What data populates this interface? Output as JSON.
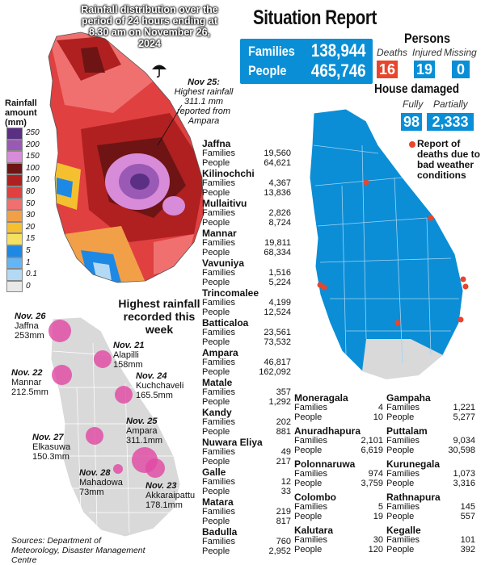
{
  "rainfall_map": {
    "title": "Rainfall distribution over the period of 24 hours ending at 8.30 am on November 26, 2024",
    "annotation": {
      "date": "Nov 25:",
      "text": "Highest rainfall 311.1 mm reported from Ampara"
    },
    "legend_title": "Rainfall amount (mm)",
    "legend": [
      {
        "label": "250",
        "color": "#5b2f84"
      },
      {
        "label": "200",
        "color": "#9b59b6"
      },
      {
        "label": "150",
        "color": "#d88bd8"
      },
      {
        "label": "100",
        "color": "#6e1414"
      },
      {
        "label": "100",
        "color": "#b02020"
      },
      {
        "label": "80",
        "color": "#e04040"
      },
      {
        "label": "50",
        "color": "#f07070"
      },
      {
        "label": "30",
        "color": "#f2a048"
      },
      {
        "label": "20",
        "color": "#f5c030"
      },
      {
        "label": "15",
        "color": "#f5e060"
      },
      {
        "label": "5",
        "color": "#1e88e5"
      },
      {
        "label": "1",
        "color": "#64b5f6"
      },
      {
        "label": "0.1",
        "color": "#b3d9f5"
      },
      {
        "label": "0",
        "color": "#e8e8e8"
      }
    ]
  },
  "situation_report": {
    "title": "Situation Report",
    "families_label": "Families",
    "families_value": "138,944",
    "people_label": "People",
    "people_value": "465,746",
    "persons_title": "Persons",
    "deaths_label": "Deaths",
    "deaths_value": "16",
    "injured_label": "Injured",
    "injured_value": "19",
    "missing_label": "Missing",
    "missing_value": "0",
    "house_title": "House damaged",
    "fully_label": "Fully",
    "fully_value": "98",
    "partially_label": "Partially",
    "partially_value": "2,333",
    "deaths_note": "Report of deaths due to bad weather conditions"
  },
  "districts_col1": [
    {
      "name": "Jaffna",
      "families": "19,560",
      "people": "64,621"
    },
    {
      "name": "Kilinochchi",
      "families": "4,367",
      "people": "13,836"
    },
    {
      "name": "Mullaitivu",
      "families": "2,826",
      "people": "8,724"
    },
    {
      "name": "Mannar",
      "families": "19,811",
      "people": "68,334"
    },
    {
      "name": "Vavuniya",
      "families": "1,516",
      "people": "5,224"
    },
    {
      "name": "Trincomalee",
      "families": "4,199",
      "people": "12,524"
    },
    {
      "name": "Batticaloa",
      "families": "23,561",
      "people": "73,532"
    },
    {
      "name": "Ampara",
      "families": "46,817",
      "people": "162,092"
    },
    {
      "name": "Matale",
      "families": "357",
      "people": "1,292"
    },
    {
      "name": "Kandy",
      "families": "202",
      "people": "881"
    },
    {
      "name": "Nuwara Eliya",
      "families": "49",
      "people": "217"
    },
    {
      "name": "Galle",
      "families": "12",
      "people": "33"
    },
    {
      "name": "Matara",
      "families": "219",
      "people": "817"
    },
    {
      "name": "Badulla",
      "families": "760",
      "people": "2,952"
    }
  ],
  "districts_col2": [
    {
      "name": "Moneragala",
      "families": "4",
      "people": "10"
    },
    {
      "name": "Anuradhapura",
      "families": "2,101",
      "people": "6,619"
    },
    {
      "name": "Polonnaruwa",
      "families": "974",
      "people": "3,759"
    },
    {
      "name": "Colombo",
      "families": "5",
      "people": "19"
    },
    {
      "name": "Kalutara",
      "families": "30",
      "people": "120"
    }
  ],
  "districts_col3": [
    {
      "name": "Gampaha",
      "families": "1,221",
      "people": "5,277"
    },
    {
      "name": "Puttalam",
      "families": "9,034",
      "people": "30,598"
    },
    {
      "name": "Kurunegala",
      "families": "1,073",
      "people": "3,316"
    },
    {
      "name": "Rathnapura",
      "families": "145",
      "people": "557"
    },
    {
      "name": "Kegalle",
      "families": "101",
      "people": "392"
    }
  ],
  "labels": {
    "families": "Families",
    "people": "People"
  },
  "highest_rainfall": {
    "title": "Highest rainfall recorded this week",
    "items": [
      {
        "date": "Nov. 26",
        "place": "Jaffna",
        "value": "253mm"
      },
      {
        "date": "Nov. 21",
        "place": "Alapilli",
        "value": "158mm"
      },
      {
        "date": "Nov. 22",
        "place": "Mannar",
        "value": "212.5mm"
      },
      {
        "date": "Nov. 24",
        "place": "Kuchchaveli",
        "value": "165.5mm"
      },
      {
        "date": "Nov. 25",
        "place": "Ampara",
        "value": "311.1mm"
      },
      {
        "date": "Nov. 27",
        "place": "Elkasuwa",
        "value": "150.3mm"
      },
      {
        "date": "Nov. 28",
        "place": "Mahadowa",
        "value": "73mm"
      },
      {
        "date": "Nov. 23",
        "place": "Akkaraipattu",
        "value": "178.1mm"
      }
    ]
  },
  "sources": "Sources: Department of Meteorology, Disaster Management Centre"
}
